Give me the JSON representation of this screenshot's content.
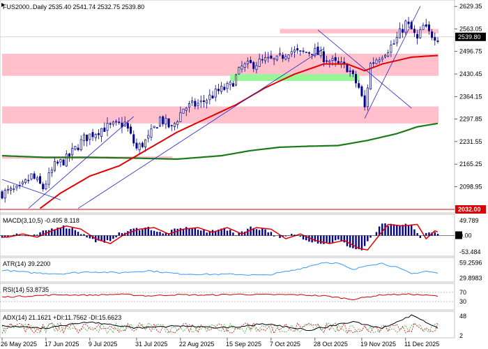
{
  "header": {
    "label": "FUS2000..Daily  2535.40 2541.74 2532.75 2539.80"
  },
  "colors": {
    "up": "#00008b",
    "down": "#00008b",
    "ma_fast": "#e00000",
    "ma_slow": "#1a7a1a",
    "zone_pink": "#ffc0cb",
    "zone_green": "#98f598",
    "trend": "#2222cc",
    "macd_hist": "#00008b",
    "macd_signal": "#e00000",
    "atr": "#3399ff",
    "rsi": "#cc0000",
    "adx": "#000000",
    "di_plus": "#3aa83a",
    "di_minus": "#cc0000",
    "last_box": "#000000",
    "support_box": "#dd0000"
  },
  "chart_data": [
    {
      "type": "candlestick",
      "title": "FUS2000..Daily",
      "ohlc_last": {
        "open": 2535.4,
        "high": 2541.74,
        "low": 2532.75,
        "close": 2539.8
      },
      "ylim": [
        2032.0,
        2640.0
      ],
      "y_ticks": [
        "2629.35",
        "2563.05",
        "2496.75",
        "2430.45",
        "2364.15",
        "2297.85",
        "2231.55",
        "2165.25",
        "2098.95"
      ],
      "last_price_label": "2539.80",
      "support_label": "2032.00",
      "x_labels": [
        "26 May 2025",
        "17 Jun 2025",
        "9 Jul 2025",
        "31 Jul 2025",
        "22 Aug 2025",
        "15 Sep 2025",
        "7 Oct 2025",
        "28 Oct 2025",
        "19 Nov 2025",
        "11 Dec 2025"
      ],
      "n_bars": 150,
      "anchors": [
        [
          0,
          2080
        ],
        [
          6,
          2090
        ],
        [
          10,
          2130
        ],
        [
          14,
          2095
        ],
        [
          18,
          2160
        ],
        [
          22,
          2180
        ],
        [
          28,
          2240
        ],
        [
          34,
          2270
        ],
        [
          42,
          2285
        ],
        [
          46,
          2210
        ],
        [
          50,
          2240
        ],
        [
          54,
          2300
        ],
        [
          58,
          2270
        ],
        [
          62,
          2330
        ],
        [
          68,
          2345
        ],
        [
          74,
          2380
        ],
        [
          78,
          2395
        ],
        [
          82,
          2450
        ],
        [
          86,
          2460
        ],
        [
          90,
          2470
        ],
        [
          94,
          2470
        ],
        [
          98,
          2500
        ],
        [
          102,
          2490
        ],
        [
          106,
          2500
        ],
        [
          110,
          2480
        ],
        [
          114,
          2460
        ],
        [
          118,
          2450
        ],
        [
          122,
          2390
        ],
        [
          124,
          2330
        ],
        [
          126,
          2460
        ],
        [
          130,
          2490
        ],
        [
          134,
          2520
        ],
        [
          138,
          2580
        ],
        [
          140,
          2560
        ],
        [
          142,
          2530
        ],
        [
          144,
          2570
        ],
        [
          146,
          2550
        ],
        [
          149,
          2540
        ]
      ],
      "zones": [
        {
          "y1": 2550,
          "y2": 2563,
          "x1": 95,
          "x2": 149,
          "color": "pink"
        },
        {
          "y1": 2425,
          "y2": 2490,
          "x1": 0,
          "x2": 149,
          "color": "pink"
        },
        {
          "y1": 2410,
          "y2": 2430,
          "x1": 78,
          "x2": 122,
          "color": "green"
        },
        {
          "y1": 2285,
          "y2": 2335,
          "x1": 0,
          "x2": 149,
          "color": "pink"
        },
        {
          "y1": 2181,
          "y2": 2188,
          "x1": 0,
          "x2": 58,
          "color": "pink"
        }
      ],
      "ma_fast_anchors": [
        [
          13,
          2035
        ],
        [
          20,
          2080
        ],
        [
          30,
          2130
        ],
        [
          40,
          2160
        ],
        [
          50,
          2210
        ],
        [
          60,
          2260
        ],
        [
          70,
          2300
        ],
        [
          80,
          2340
        ],
        [
          90,
          2390
        ],
        [
          100,
          2430
        ],
        [
          110,
          2460
        ],
        [
          118,
          2460
        ],
        [
          124,
          2440
        ],
        [
          130,
          2460
        ],
        [
          140,
          2480
        ],
        [
          149,
          2485
        ]
      ],
      "ma_slow_anchors": [
        [
          0,
          2190
        ],
        [
          15,
          2185
        ],
        [
          30,
          2185
        ],
        [
          45,
          2183
        ],
        [
          60,
          2180
        ],
        [
          75,
          2190
        ],
        [
          85,
          2205
        ],
        [
          95,
          2215
        ],
        [
          105,
          2218
        ],
        [
          115,
          2220
        ],
        [
          125,
          2235
        ],
        [
          135,
          2255
        ],
        [
          142,
          2275
        ],
        [
          149,
          2285
        ]
      ],
      "trendlines": [
        {
          "x1": 26,
          "y1": 2035,
          "x2": 110,
          "y2": 2505
        },
        {
          "x1": 0,
          "y1": 2120,
          "x2": 20,
          "y2": 2060
        },
        {
          "x1": 9,
          "y1": 2035,
          "x2": 45,
          "y2": 2305
        },
        {
          "x1": 108,
          "y1": 2560,
          "x2": 140,
          "y2": 2330
        },
        {
          "x1": 124,
          "y1": 2300,
          "x2": 143,
          "y2": 2630
        }
      ]
    },
    {
      "type": "bar",
      "title": "MACD(3,10,5) -0.495 8.118",
      "y_ticks": [
        "49.789",
        "0.00",
        "-53.484"
      ],
      "ylim": [
        -60,
        60
      ],
      "hist_anchors": [
        [
          0,
          -5
        ],
        [
          5,
          5
        ],
        [
          10,
          -5
        ],
        [
          15,
          15
        ],
        [
          20,
          30
        ],
        [
          25,
          20
        ],
        [
          30,
          -10
        ],
        [
          35,
          -25
        ],
        [
          40,
          5
        ],
        [
          45,
          20
        ],
        [
          50,
          25
        ],
        [
          55,
          5
        ],
        [
          60,
          20
        ],
        [
          65,
          25
        ],
        [
          70,
          10
        ],
        [
          75,
          25
        ],
        [
          80,
          5
        ],
        [
          85,
          25
        ],
        [
          90,
          20
        ],
        [
          95,
          -10
        ],
        [
          100,
          5
        ],
        [
          105,
          -15
        ],
        [
          110,
          -25
        ],
        [
          115,
          -15
        ],
        [
          120,
          -40
        ],
        [
          123,
          -45
        ],
        [
          126,
          -10
        ],
        [
          130,
          35
        ],
        [
          135,
          30
        ],
        [
          140,
          35
        ],
        [
          143,
          -10
        ],
        [
          146,
          15
        ],
        [
          149,
          5
        ]
      ]
    },
    {
      "type": "line",
      "title": "ATR(14) 39.2200",
      "y_ticks": [
        "59.2596",
        "29.8983"
      ],
      "ylim": [
        25,
        65
      ],
      "values_anchors": [
        [
          0,
          45
        ],
        [
          10,
          40
        ],
        [
          20,
          38
        ],
        [
          30,
          42
        ],
        [
          40,
          40
        ],
        [
          50,
          44
        ],
        [
          60,
          38
        ],
        [
          70,
          37
        ],
        [
          80,
          37
        ],
        [
          90,
          35
        ],
        [
          100,
          45
        ],
        [
          110,
          60
        ],
        [
          115,
          58
        ],
        [
          120,
          45
        ],
        [
          125,
          55
        ],
        [
          130,
          58
        ],
        [
          135,
          50
        ],
        [
          140,
          38
        ],
        [
          145,
          43
        ],
        [
          149,
          39
        ]
      ]
    },
    {
      "type": "line",
      "title": "RSI(14) 53.8735",
      "y_ticks": [
        "70",
        "30"
      ],
      "ylim": [
        0,
        100
      ],
      "values_anchors": [
        [
          0,
          50
        ],
        [
          10,
          55
        ],
        [
          20,
          60
        ],
        [
          30,
          58
        ],
        [
          40,
          62
        ],
        [
          50,
          55
        ],
        [
          60,
          60
        ],
        [
          70,
          58
        ],
        [
          80,
          62
        ],
        [
          90,
          60
        ],
        [
          100,
          60
        ],
        [
          110,
          55
        ],
        [
          120,
          40
        ],
        [
          125,
          50
        ],
        [
          130,
          60
        ],
        [
          140,
          62
        ],
        [
          149,
          54
        ]
      ]
    },
    {
      "type": "line",
      "title": "ADX(14) 21.1621 +DI:11.7562 -DI:15.6623",
      "y_ticks": [
        "48",
        "2"
      ],
      "ylim": [
        0,
        55
      ],
      "adx_anchors": [
        [
          0,
          25
        ],
        [
          15,
          20
        ],
        [
          30,
          35
        ],
        [
          45,
          20
        ],
        [
          60,
          25
        ],
        [
          75,
          20
        ],
        [
          90,
          30
        ],
        [
          105,
          15
        ],
        [
          120,
          35
        ],
        [
          130,
          20
        ],
        [
          140,
          50
        ],
        [
          149,
          21
        ]
      ]
    }
  ]
}
